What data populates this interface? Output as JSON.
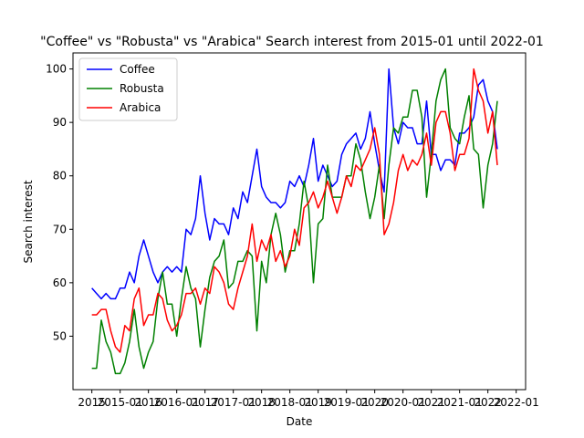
{
  "chart_data": {
    "type": "line",
    "title": "\"Coffee\" vs \"Robusta\" vs \"Arabica\" Search interest from 2015-01 until 2022-01",
    "xlabel": "Date",
    "ylabel": "Search interest",
    "x_start": "2015-01",
    "x_tick_labels": [
      "2015",
      "2015-01",
      "2016",
      "2016-01",
      "2017",
      "2017-01",
      "2018",
      "2018-01",
      "2019",
      "2019-01",
      "2020",
      "2020-01",
      "2021",
      "2021-01",
      "2022",
      "2022-01"
    ],
    "y_ticks": [
      50,
      60,
      70,
      80,
      90,
      100
    ],
    "xlim": [
      "2014-09",
      "2022-09"
    ],
    "ylim": [
      40,
      103
    ],
    "grid": false,
    "legend_position": "top-left",
    "series": [
      {
        "name": "Coffee",
        "color": "#0000ff",
        "values": [
          59,
          58,
          57,
          58,
          57,
          57,
          59,
          59,
          62,
          60,
          65,
          68,
          65,
          62,
          60,
          62,
          63,
          62,
          63,
          62,
          70,
          69,
          72,
          80,
          73,
          68,
          72,
          71,
          71,
          69,
          74,
          72,
          77,
          75,
          80,
          85,
          78,
          76,
          75,
          75,
          74,
          75,
          79,
          78,
          80,
          78,
          82,
          87,
          79,
          82,
          80,
          78,
          79,
          84,
          86,
          87,
          88,
          85,
          87,
          92,
          86,
          81,
          77,
          100,
          89,
          86,
          90,
          89,
          89,
          86,
          86,
          94,
          84,
          84,
          81,
          83,
          83,
          82,
          88,
          88,
          89,
          91,
          97,
          98,
          94,
          92,
          85
        ]
      },
      {
        "name": "Robusta",
        "color": "#008000",
        "values": [
          44,
          44,
          53,
          49,
          47,
          43,
          43,
          45,
          49,
          55,
          48,
          44,
          47,
          49,
          57,
          62,
          56,
          56,
          50,
          57,
          63,
          59,
          57,
          48,
          55,
          61,
          64,
          65,
          68,
          59,
          60,
          64,
          64,
          66,
          65,
          51,
          64,
          60,
          69,
          73,
          69,
          62,
          66,
          66,
          71,
          79,
          74,
          60,
          71,
          72,
          82,
          76,
          76,
          76,
          80,
          80,
          86,
          83,
          77,
          72,
          76,
          82,
          72,
          82,
          89,
          88,
          91,
          91,
          96,
          96,
          91,
          76,
          84,
          94,
          98,
          100,
          89,
          87,
          86,
          91,
          95,
          85,
          84,
          74,
          82,
          86,
          94
        ]
      },
      {
        "name": "Arabica",
        "color": "#ff0000",
        "values": [
          54,
          54,
          55,
          55,
          51,
          48,
          47,
          52,
          51,
          57,
          59,
          52,
          54,
          54,
          58,
          57,
          53,
          51,
          52,
          54,
          58,
          58,
          59,
          56,
          59,
          58,
          63,
          62,
          60,
          56,
          55,
          59,
          62,
          65,
          71,
          64,
          68,
          66,
          69,
          64,
          66,
          63,
          65,
          70,
          67,
          74,
          75,
          77,
          74,
          76,
          79,
          76,
          73,
          76,
          80,
          78,
          82,
          81,
          83,
          85,
          89,
          84,
          69,
          71,
          75,
          81,
          84,
          81,
          83,
          82,
          84,
          88,
          82,
          90,
          92,
          92,
          88,
          81,
          84,
          84,
          87,
          100,
          96,
          94,
          88,
          92,
          82
        ]
      }
    ]
  }
}
